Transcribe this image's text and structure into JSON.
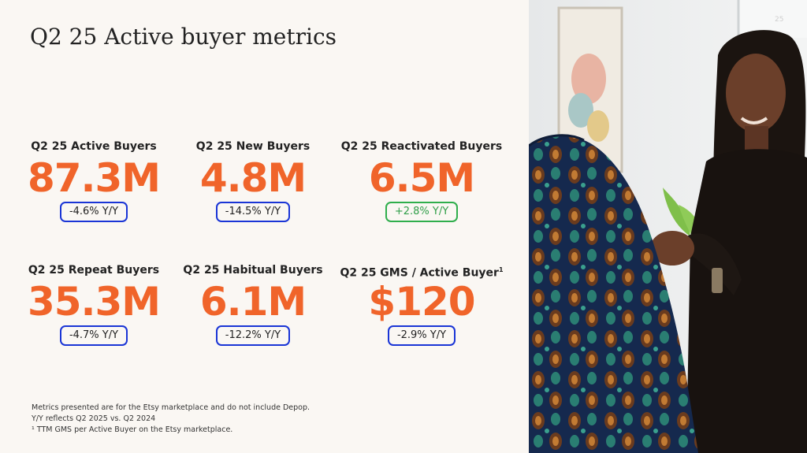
{
  "slide": {
    "title": "Q2 25 Active buyer metrics",
    "page_number": "25"
  },
  "metrics": [
    {
      "label": "Q2 25 Active Buyers",
      "value": "87.3M",
      "change": "-4.6% Y/Y",
      "trend": "negative"
    },
    {
      "label": "Q2 25 New Buyers",
      "value": "4.8M",
      "change": "-14.5% Y/Y",
      "trend": "negative"
    },
    {
      "label": "Q2 25 Reactivated Buyers",
      "value": "6.5M",
      "change": "+2.8% Y/Y",
      "trend": "positive"
    },
    {
      "label": "Q2 25 Repeat Buyers",
      "value": "35.3M",
      "change": "-4.7% Y/Y",
      "trend": "negative"
    },
    {
      "label": "Q2 25 Habitual Buyers",
      "value": "6.1M",
      "change": "-12.2% Y/Y",
      "trend": "negative"
    },
    {
      "label": "Q2 25 GMS / Active Buyer",
      "label_sup": "1",
      "value": "$120",
      "change": "-2.9% Y/Y",
      "trend": "negative"
    }
  ],
  "footnotes": {
    "line1": "Metrics presented are for the Etsy marketplace and do not include Depop.",
    "line2": "Y/Y reflects Q2 2025 vs. Q2 2024",
    "line3": "¹ TTM GMS per Active Buyer on the Etsy marketplace."
  },
  "colors": {
    "accent_orange": "#f0642a",
    "negative_outline": "#1a35d6",
    "positive_outline": "#2fae4c",
    "positive_text": "#2f9e48",
    "background": "#faf7f3"
  }
}
